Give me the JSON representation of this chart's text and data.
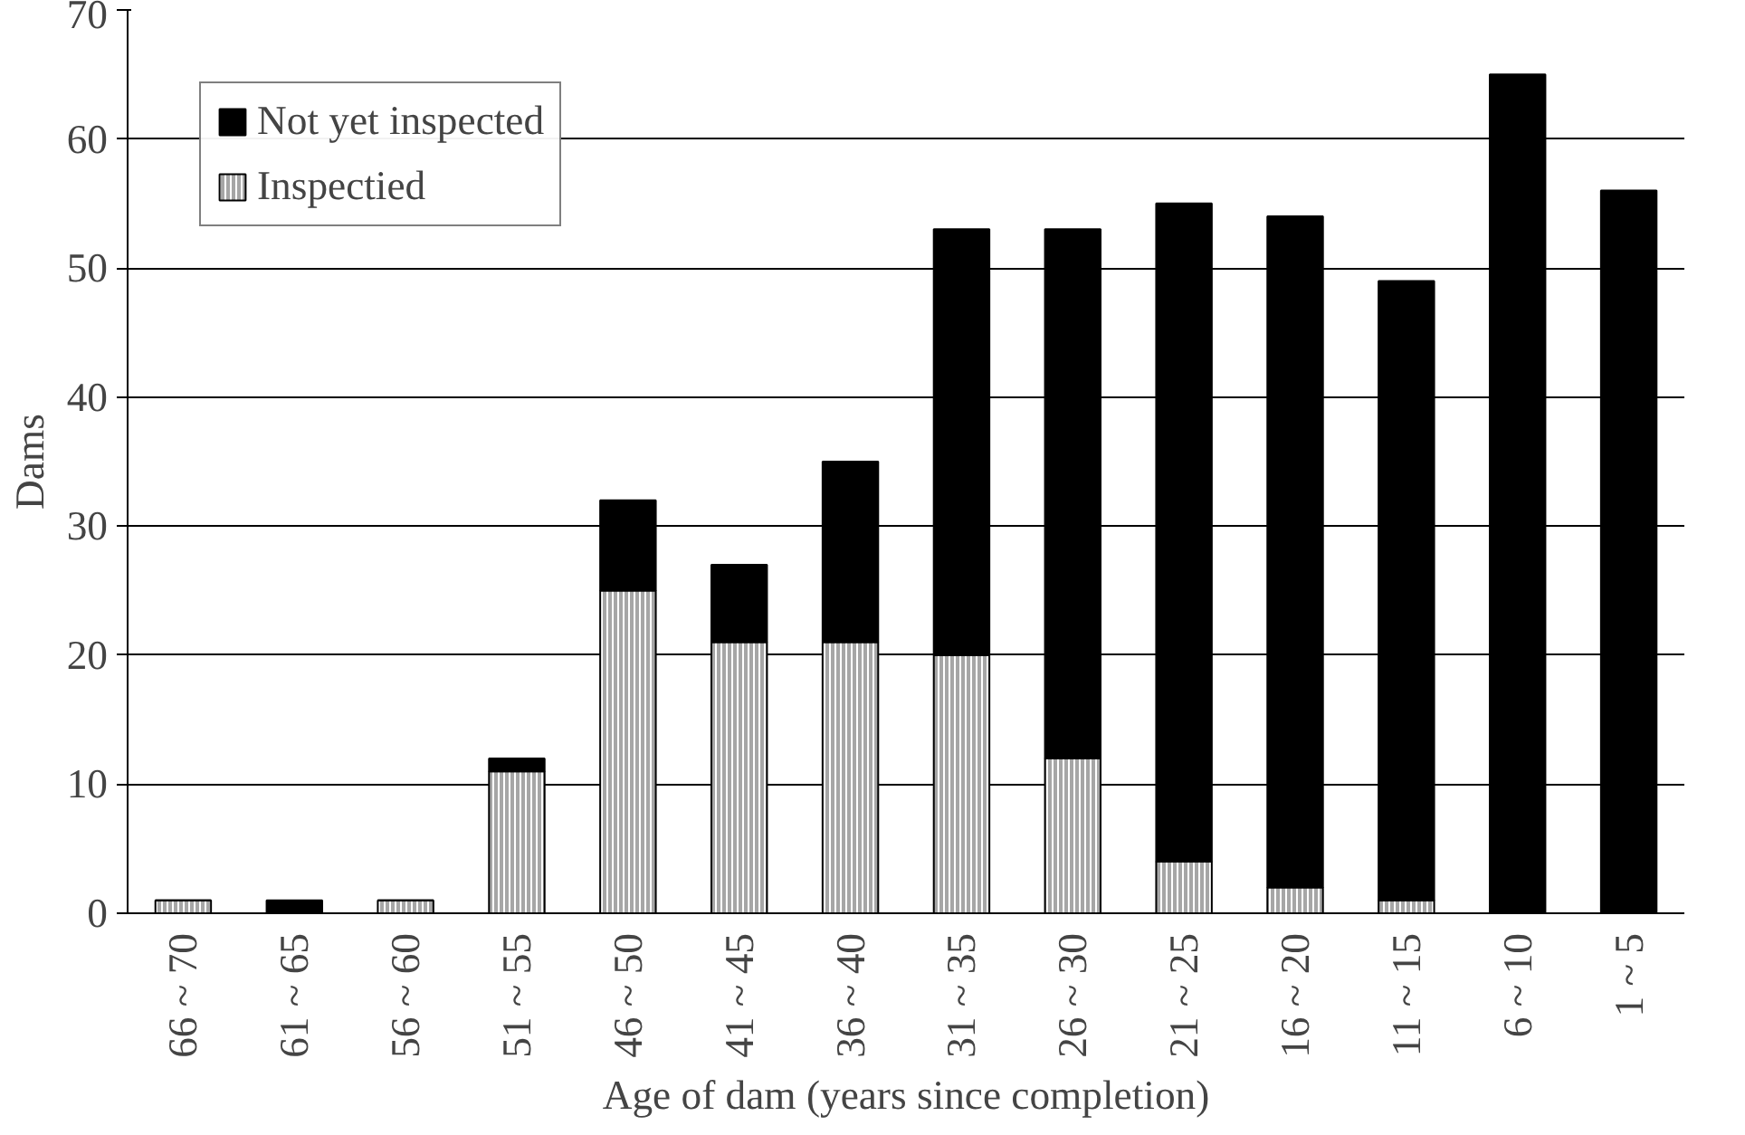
{
  "chart_data": {
    "type": "bar",
    "stacked": true,
    "xlabel": "Age of dam (years since completion)",
    "ylabel": "Dams",
    "categories": [
      "66 ~ 70",
      "61 ~ 65",
      "56 ~ 60",
      "51 ~ 55",
      "46 ~ 50",
      "41 ~ 45",
      "36 ~ 40",
      "31 ~ 35",
      "26 ~ 30",
      "21 ~ 25",
      "16 ~ 20",
      "11 ~ 15",
      "6 ~ 10",
      "1 ~ 5"
    ],
    "series": [
      {
        "name": "Inspectied",
        "color": "#a6a6a6",
        "values": [
          1,
          0,
          1,
          11,
          25,
          21,
          21,
          20,
          12,
          4,
          2,
          1,
          0,
          0
        ]
      },
      {
        "name": "Not yet inspected",
        "color": "#000000",
        "values": [
          0,
          1,
          0,
          1,
          7,
          6,
          14,
          33,
          41,
          51,
          52,
          48,
          65,
          56
        ]
      }
    ],
    "ylim": [
      0,
      70
    ],
    "yticks": [
      0,
      10,
      20,
      30,
      40,
      50,
      60,
      70
    ],
    "grid": "y",
    "legend": "top left"
  }
}
